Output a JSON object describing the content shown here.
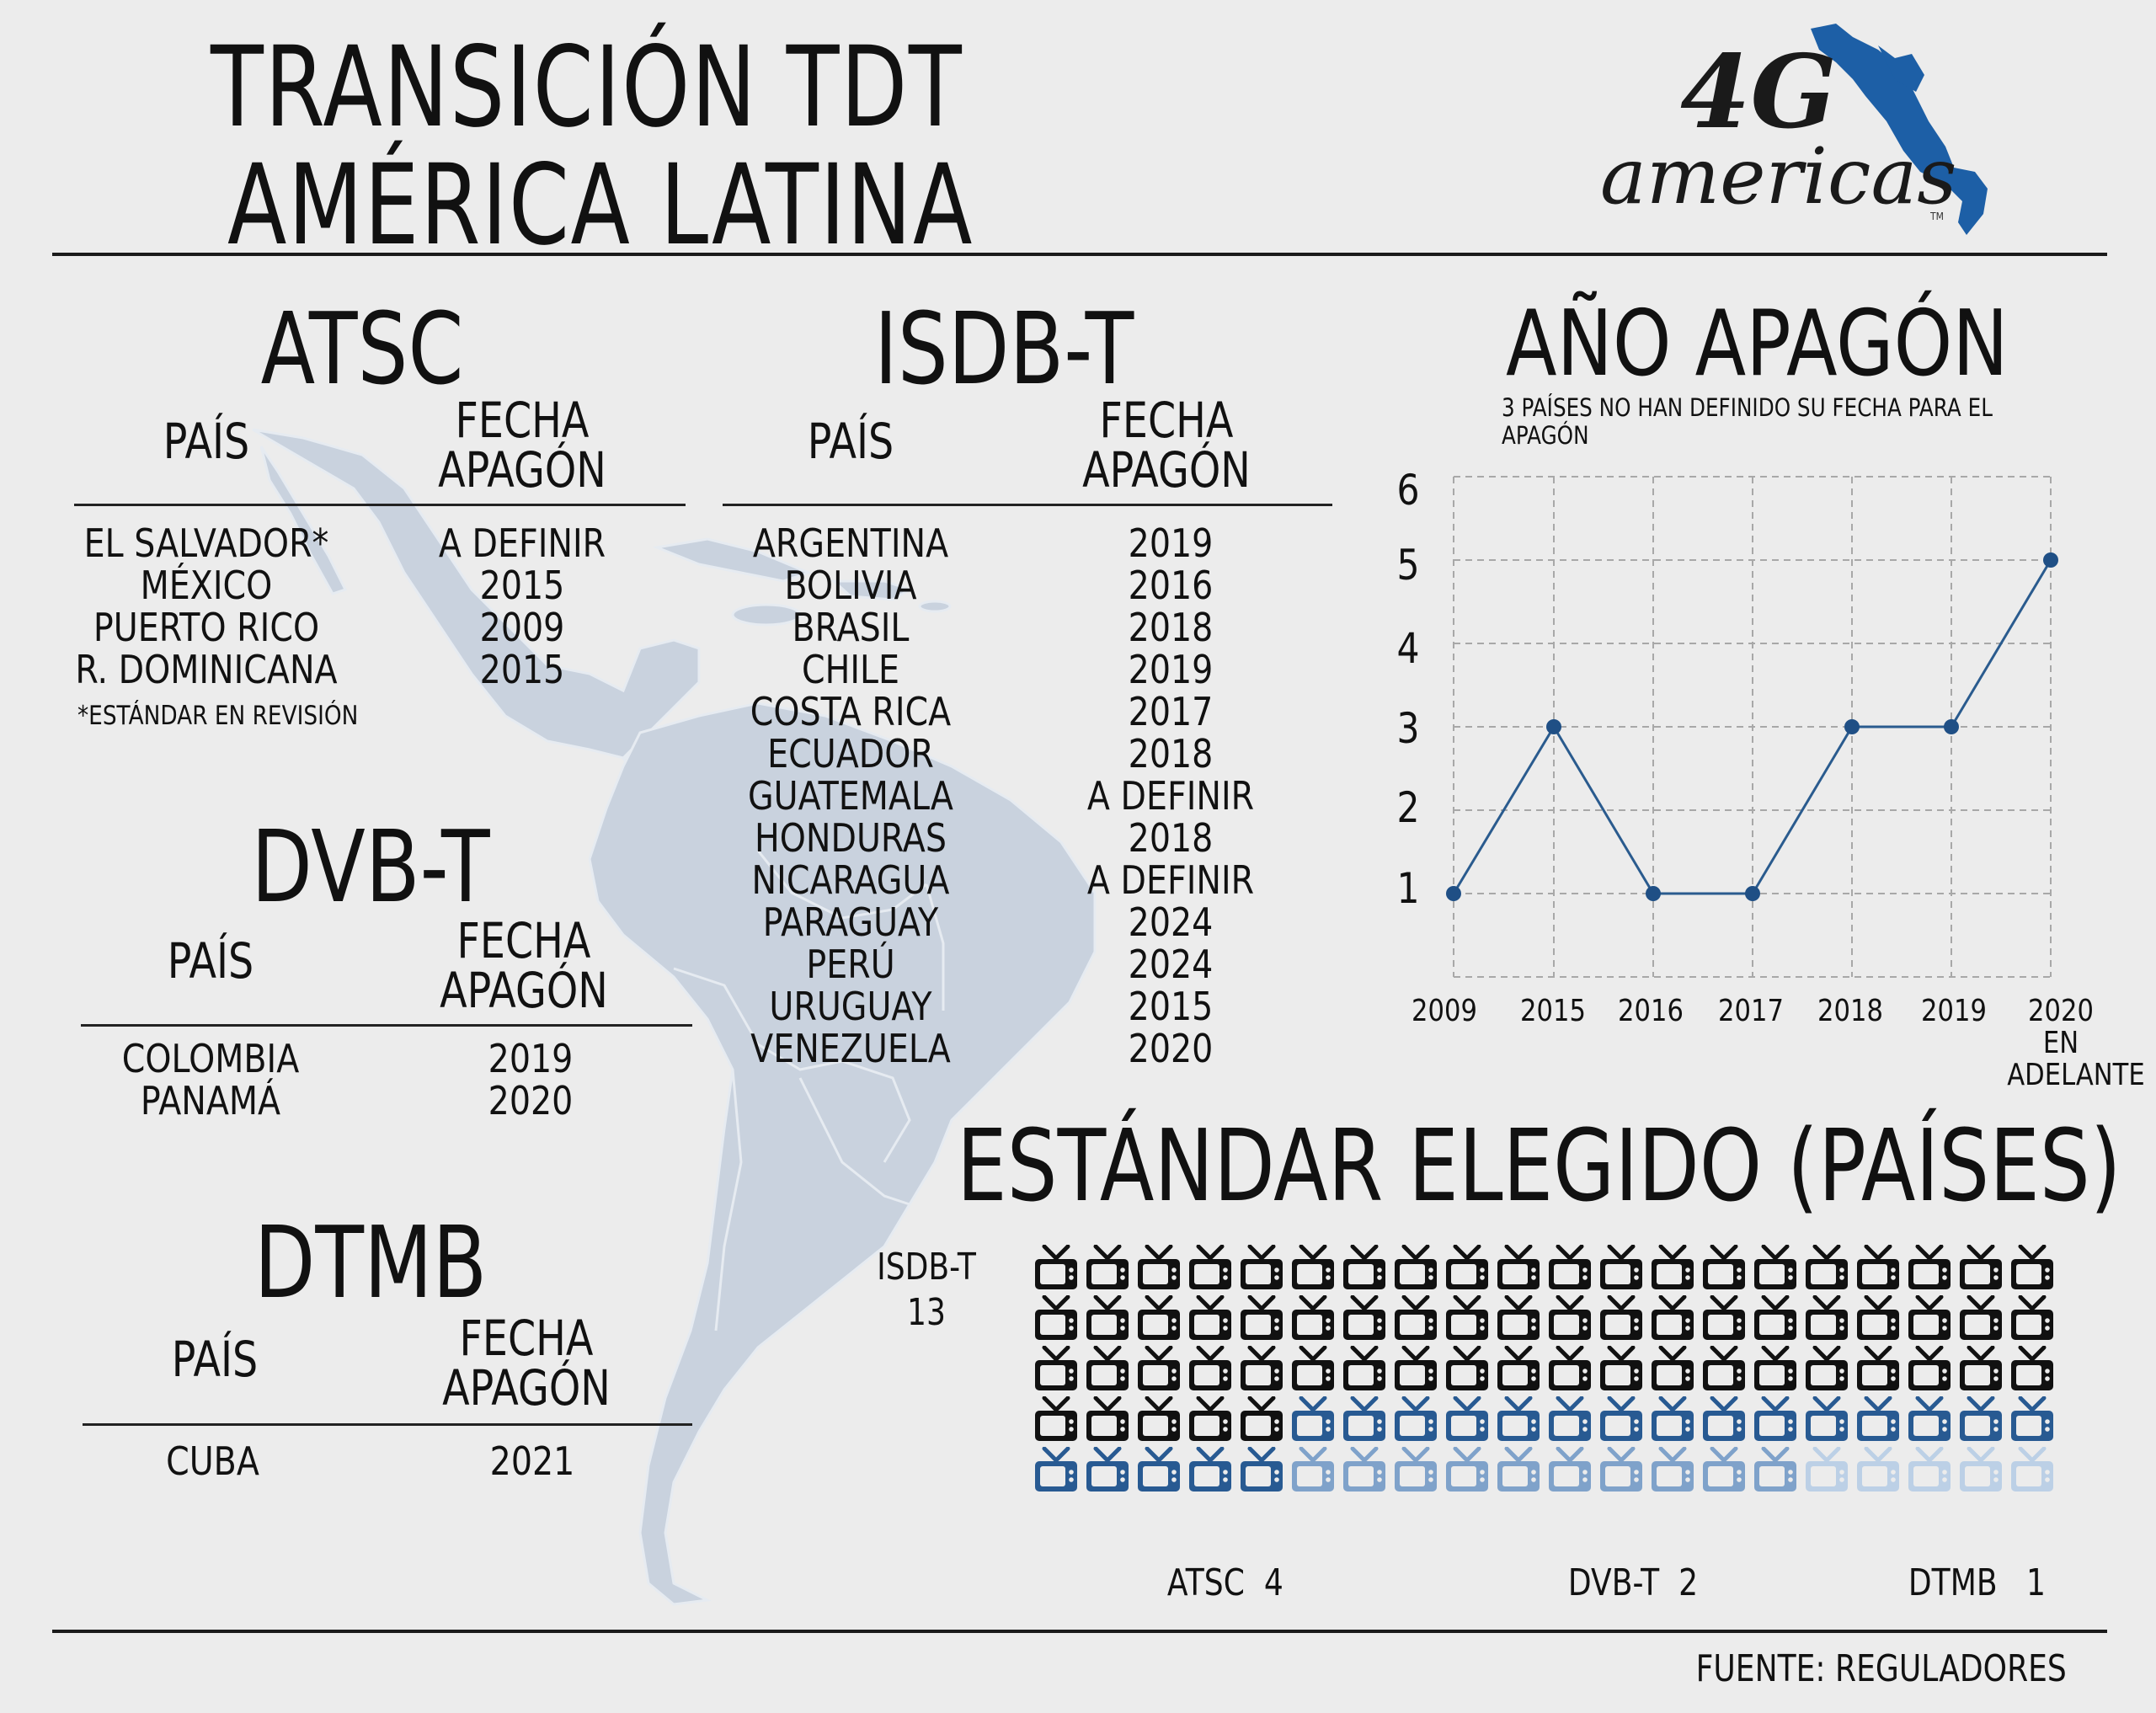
{
  "header": {
    "title_line1": "TRANSICIÓN TDT",
    "title_line2": "AMÉRICA LATINA",
    "logo_text_top": "4G",
    "logo_text_bottom": "americas",
    "logo_tm": "TM",
    "colors": {
      "logo_blue": "#1d5fa6",
      "ink": "#111111",
      "background": "#ececec"
    }
  },
  "tables": {
    "atsc": {
      "title": "ATSC",
      "col_country": "PAÍS",
      "col_date_line1": "FECHA",
      "col_date_line2": "APAGÓN",
      "rows": [
        {
          "country": "EL SALVADOR*",
          "date": "A DEFINIR"
        },
        {
          "country": "MÉXICO",
          "date": "2015"
        },
        {
          "country": "PUERTO RICO",
          "date": "2009"
        },
        {
          "country": "R. DOMINICANA",
          "date": "2015"
        }
      ],
      "footnote": "*ESTÁNDAR EN REVISIÓN"
    },
    "isdbt": {
      "title": "ISDB-T",
      "col_country": "PAÍS",
      "col_date_line1": "FECHA",
      "col_date_line2": "APAGÓN",
      "rows": [
        {
          "country": "ARGENTINA",
          "date": "2019"
        },
        {
          "country": "BOLIVIA",
          "date": "2016"
        },
        {
          "country": "BRASIL",
          "date": "2018"
        },
        {
          "country": "CHILE",
          "date": "2019"
        },
        {
          "country": "COSTA RICA",
          "date": "2017"
        },
        {
          "country": "ECUADOR",
          "date": "2018"
        },
        {
          "country": "GUATEMALA",
          "date": "A DEFINIR"
        },
        {
          "country": "HONDURAS",
          "date": "2018"
        },
        {
          "country": "NICARAGUA",
          "date": "A DEFINIR"
        },
        {
          "country": "PARAGUAY",
          "date": "2024"
        },
        {
          "country": "PERÚ",
          "date": "2024"
        },
        {
          "country": "URUGUAY",
          "date": "2015"
        },
        {
          "country": "VENEZUELA",
          "date": "2020"
        }
      ]
    },
    "dvbt": {
      "title": "DVB-T",
      "col_country": "PAÍS",
      "col_date_line1": "FECHA",
      "col_date_line2": "APAGÓN",
      "rows": [
        {
          "country": "COLOMBIA",
          "date": "2019"
        },
        {
          "country": "PANAMÁ",
          "date": "2020"
        }
      ]
    },
    "dtmb": {
      "title": "DTMB",
      "col_country": "PAÍS",
      "col_date_line1": "FECHA",
      "col_date_line2": "APAGÓN",
      "rows": [
        {
          "country": "CUBA",
          "date": "2021"
        }
      ]
    }
  },
  "chart_data": [
    {
      "type": "line",
      "title": "AÑO APAGÓN",
      "subtitle": "3 PAÍSES NO HAN DEFINIDO SU FECHA PARA EL APAGÓN",
      "categories": [
        "2009",
        "2015",
        "2016",
        "2017",
        "2018",
        "2019",
        "2020 EN ADELANTE"
      ],
      "values": [
        1,
        3,
        1,
        1,
        3,
        3,
        5
      ],
      "xlabel": "",
      "ylabel": "",
      "yticks": [
        1,
        2,
        3,
        4,
        5,
        6
      ],
      "ylim": [
        0,
        6
      ],
      "grid": "dashed",
      "line_color": "#2a5b8e",
      "marker_color": "#1f4f85"
    },
    {
      "type": "pictogram",
      "title": "ESTÁNDAR ELEGIDO (PAÍSES)",
      "categories": [
        "ISDB-T",
        "ATSC",
        "DVB-T",
        "DTMB"
      ],
      "values": [
        13,
        4,
        2,
        1
      ],
      "icons_per_category": [
        65,
        20,
        10,
        5
      ],
      "grid": {
        "rows": 5,
        "cols": 20
      },
      "colors": {
        "ISDB-T": "#111111",
        "ATSC": "#285a92",
        "DVB-T": "#7fa2ca",
        "DTMB": "#bcd0e6"
      },
      "labels": [
        {
          "name": "ISDB-T",
          "count": "13"
        },
        {
          "name": "ATSC",
          "count": "4"
        },
        {
          "name": "DVB-T",
          "count": "2"
        },
        {
          "name": "DTMB",
          "count": "1"
        }
      ]
    }
  ],
  "footer": {
    "source": "FUENTE: REGULADORES"
  }
}
